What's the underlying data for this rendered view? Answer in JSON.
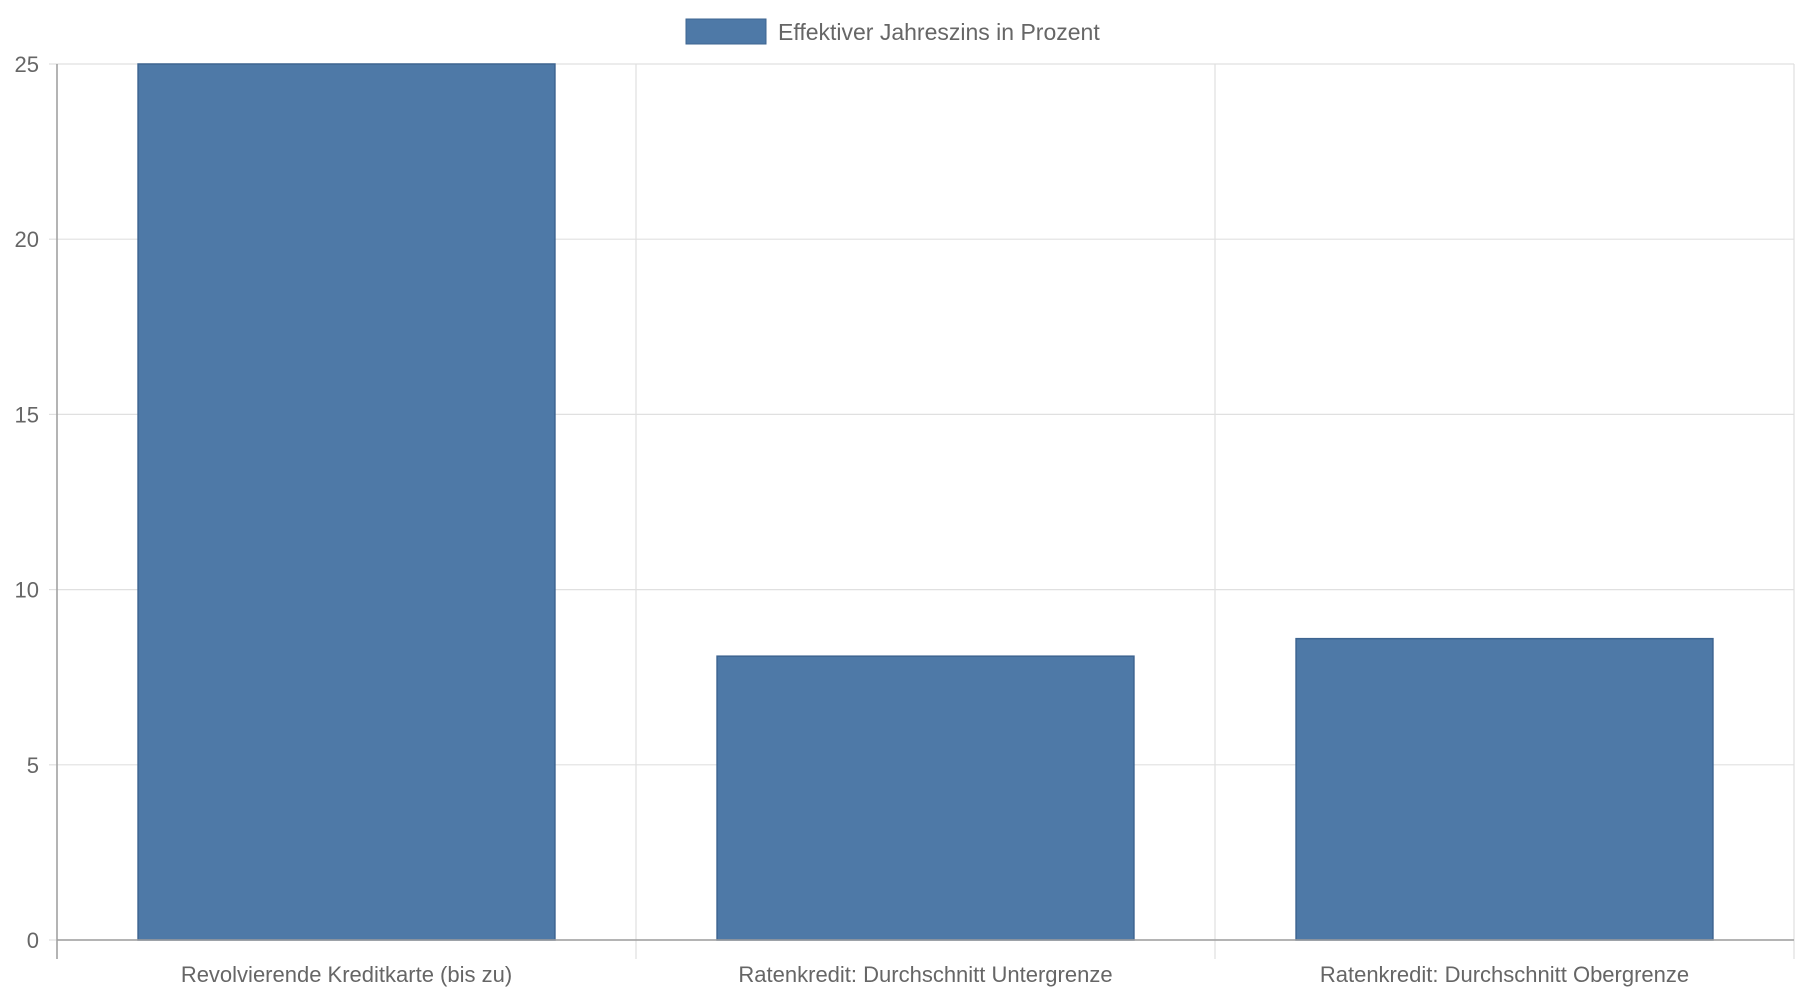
{
  "chart_data": {
    "type": "bar",
    "categories": [
      "Revolvierende Kreditkarte (bis zu)",
      "Ratenkredit: Durchschnitt Untergrenze",
      "Ratenkredit: Durchschnitt Obergrenze"
    ],
    "series": [
      {
        "name": "Effektiver Jahreszins in Prozent",
        "values": [
          25,
          8.1,
          8.6
        ],
        "color": "#4e79a7"
      }
    ],
    "ylim": [
      0,
      25
    ],
    "yticks": [
      0,
      5,
      10,
      15,
      20,
      25
    ],
    "grid": true,
    "legend_position": "top-center",
    "colors": {
      "bar_fill": "#4e79a7",
      "bar_stroke": "#3e6591",
      "grid": "#e0e0e0",
      "axis": "#9e9e9e",
      "text": "#666666"
    }
  }
}
